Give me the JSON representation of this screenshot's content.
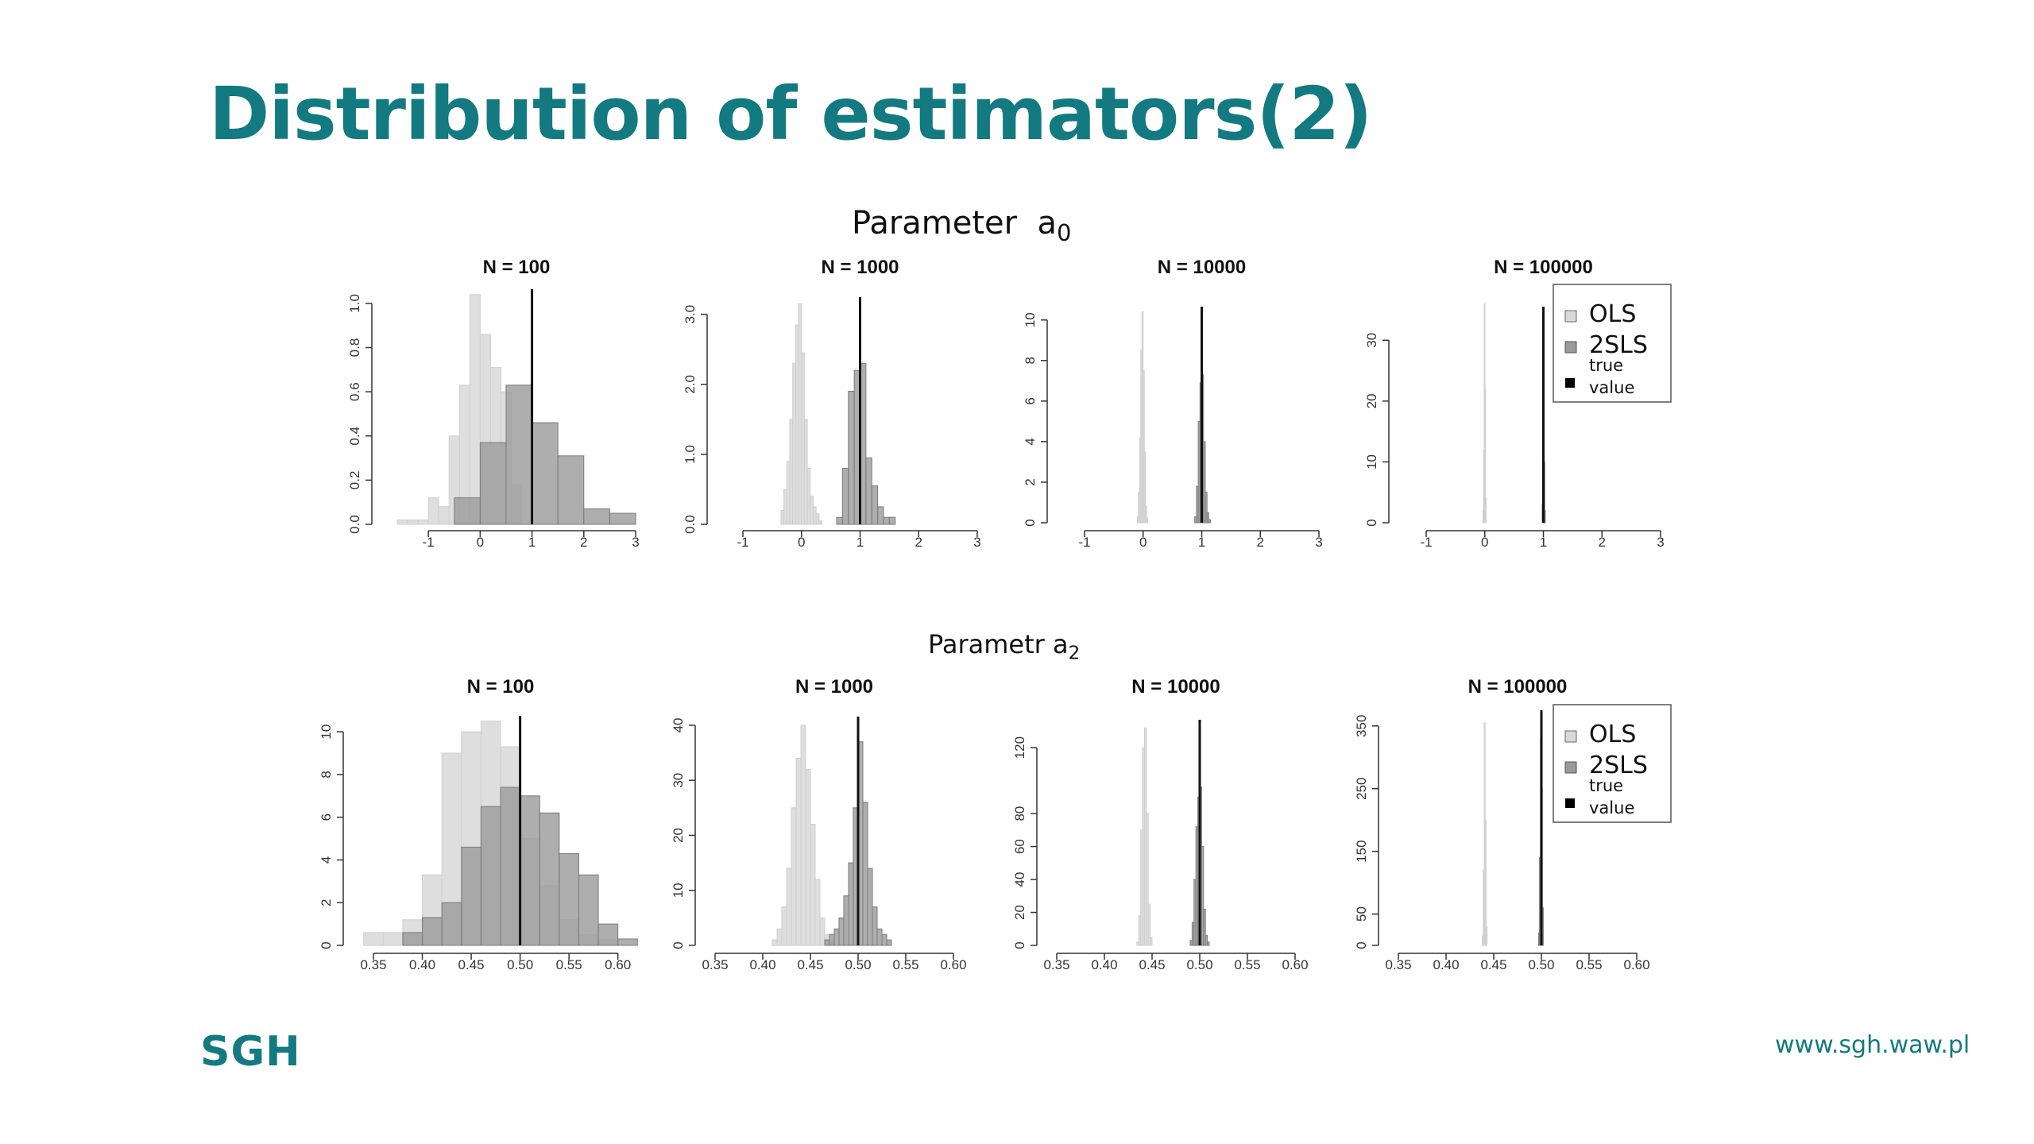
{
  "slide": {
    "title": "Distribution of estimators(2)",
    "logo": "SGH",
    "url": "www.sgh.waw.pl",
    "accent_color": "#127a80"
  },
  "sections": [
    {
      "label": "Parameter",
      "symbol": "a",
      "subscript": "0"
    },
    {
      "label": "Parametr",
      "symbol": "a",
      "subscript": "2"
    }
  ],
  "legend": {
    "items": [
      {
        "label": "OLS",
        "color": "#d9d9d9"
      },
      {
        "label": "2SLS",
        "color": "#9a9a9a"
      },
      {
        "label": "true value",
        "color": "#000000"
      }
    ]
  },
  "chart_data": [
    {
      "type": "histogram",
      "title": "N =  100",
      "parameter": "a0",
      "true_value": 1,
      "xlim": [
        -1.6,
        3.0
      ],
      "xticks": [
        -1,
        0,
        1,
        2,
        3
      ],
      "xtick_labels": [
        "-1",
        "0",
        "1",
        "2",
        "3"
      ],
      "ylim": [
        0,
        1.05
      ],
      "yticks": [
        0,
        0.2,
        0.4,
        0.6,
        0.8,
        1.0
      ],
      "ytick_labels": [
        "0.0",
        "0.2",
        "0.4",
        "0.6",
        "0.8",
        "1.0"
      ],
      "series": [
        {
          "name": "OLS",
          "bin_width": 0.2,
          "bins": [
            [
              -1.6,
              0.02
            ],
            [
              -1.4,
              0.02
            ],
            [
              -1.2,
              0.02
            ],
            [
              -1.0,
              0.12
            ],
            [
              -0.8,
              0.08
            ],
            [
              -0.6,
              0.4
            ],
            [
              -0.4,
              0.63
            ],
            [
              -0.2,
              1.04
            ],
            [
              0.0,
              0.86
            ],
            [
              0.2,
              0.71
            ],
            [
              0.4,
              0.6
            ],
            [
              0.6,
              0.18
            ]
          ]
        },
        {
          "name": "2SLS",
          "bin_width": 0.5,
          "bins": [
            [
              -0.5,
              0.12
            ],
            [
              0.0,
              0.37
            ],
            [
              0.5,
              0.63
            ],
            [
              1.0,
              0.46
            ],
            [
              1.5,
              0.31
            ],
            [
              2.0,
              0.07
            ],
            [
              2.5,
              0.05
            ]
          ]
        }
      ]
    },
    {
      "type": "histogram",
      "title": "N =  1000",
      "parameter": "a0",
      "true_value": 1,
      "xlim": [
        -1,
        3
      ],
      "xticks": [
        -1,
        0,
        1,
        2,
        3
      ],
      "xtick_labels": [
        "-1",
        "0",
        "1",
        "2",
        "3"
      ],
      "ylim": [
        0,
        3.2
      ],
      "yticks": [
        0,
        1,
        2,
        3
      ],
      "ytick_labels": [
        "0.0",
        "1.0",
        "2.0",
        "3.0"
      ],
      "series": [
        {
          "name": "OLS",
          "bin_width": 0.05,
          "bins": [
            [
              -0.35,
              0.2
            ],
            [
              -0.3,
              0.5
            ],
            [
              -0.25,
              0.9
            ],
            [
              -0.2,
              1.5
            ],
            [
              -0.15,
              2.3
            ],
            [
              -0.1,
              2.85
            ],
            [
              -0.05,
              3.15
            ],
            [
              0.0,
              2.45
            ],
            [
              0.05,
              1.5
            ],
            [
              0.1,
              0.8
            ],
            [
              0.15,
              0.4
            ],
            [
              0.2,
              0.25
            ],
            [
              0.25,
              0.15
            ],
            [
              0.3,
              0.05
            ]
          ]
        },
        {
          "name": "2SLS",
          "bin_width": 0.1,
          "bins": [
            [
              0.6,
              0.1
            ],
            [
              0.7,
              0.8
            ],
            [
              0.8,
              1.9
            ],
            [
              0.9,
              2.2
            ],
            [
              1.0,
              2.3
            ],
            [
              1.1,
              0.95
            ],
            [
              1.2,
              0.55
            ],
            [
              1.3,
              0.25
            ],
            [
              1.4,
              0.1
            ],
            [
              1.5,
              0.1
            ]
          ]
        }
      ]
    },
    {
      "type": "histogram",
      "title": "N =  10000",
      "parameter": "a0",
      "true_value": 1,
      "xlim": [
        -1,
        3
      ],
      "xticks": [
        -1,
        0,
        1,
        2,
        3
      ],
      "xtick_labels": [
        "-1",
        "0",
        "1",
        "2",
        "3"
      ],
      "ylim": [
        0,
        10.5
      ],
      "yticks": [
        0,
        2,
        4,
        6,
        8,
        10
      ],
      "ytick_labels": [
        "0",
        "2",
        "4",
        "6",
        "8",
        "10"
      ],
      "series": [
        {
          "name": "OLS",
          "bin_width": 0.02,
          "bins": [
            [
              -0.1,
              0.3
            ],
            [
              -0.08,
              1.5
            ],
            [
              -0.06,
              4.2
            ],
            [
              -0.04,
              8.5
            ],
            [
              -0.02,
              10.4
            ],
            [
              0.0,
              7.5
            ],
            [
              0.02,
              3.5
            ],
            [
              0.04,
              0.8
            ],
            [
              0.06,
              0.2
            ]
          ]
        },
        {
          "name": "2SLS",
          "bin_width": 0.03,
          "bins": [
            [
              0.88,
              0.3
            ],
            [
              0.91,
              1.8
            ],
            [
              0.94,
              5.0
            ],
            [
              0.97,
              6.9
            ],
            [
              1.0,
              7.3
            ],
            [
              1.03,
              4.0
            ],
            [
              1.06,
              1.5
            ],
            [
              1.09,
              0.5
            ],
            [
              1.12,
              0.15
            ]
          ]
        }
      ]
    },
    {
      "type": "histogram",
      "title": "N =  100000",
      "parameter": "a0",
      "true_value": 1,
      "xlim": [
        -1,
        3
      ],
      "xticks": [
        -1,
        0,
        1,
        2,
        3
      ],
      "xtick_labels": [
        "-1",
        "0",
        "1",
        "2",
        "3"
      ],
      "ylim": [
        0,
        35
      ],
      "yticks": [
        0,
        10,
        20,
        30
      ],
      "ytick_labels": [
        "0",
        "10",
        "20",
        "30"
      ],
      "series": [
        {
          "name": "OLS",
          "bin_width": 0.01,
          "bins": [
            [
              -0.03,
              2
            ],
            [
              -0.02,
              12
            ],
            [
              -0.01,
              36
            ],
            [
              0.0,
              22
            ],
            [
              0.01,
              4
            ]
          ]
        },
        {
          "name": "2SLS",
          "bin_width": 0.01,
          "bins": [
            [
              0.98,
              3
            ],
            [
              0.99,
              15
            ],
            [
              1.0,
              24
            ],
            [
              1.01,
              10
            ],
            [
              1.02,
              2
            ]
          ]
        }
      ]
    },
    {
      "type": "histogram",
      "title": "N =  100",
      "parameter": "a2",
      "true_value": 0.5,
      "xlim": [
        0.35,
        0.61
      ],
      "xticks": [
        0.35,
        0.4,
        0.45,
        0.5,
        0.55,
        0.6
      ],
      "xtick_labels": [
        "0.35",
        "0.40",
        "0.45",
        "0.50",
        "0.55",
        "0.60"
      ],
      "ylim": [
        0,
        10.6
      ],
      "yticks": [
        0,
        2,
        4,
        6,
        8,
        10
      ],
      "ytick_labels": [
        "0",
        "2",
        "4",
        "6",
        "8",
        "10"
      ],
      "series": [
        {
          "name": "OLS",
          "bin_width": 0.02,
          "bins": [
            [
              0.34,
              0.6
            ],
            [
              0.36,
              0.6
            ],
            [
              0.38,
              1.2
            ],
            [
              0.4,
              3.3
            ],
            [
              0.42,
              9.0
            ],
            [
              0.44,
              10.0
            ],
            [
              0.46,
              10.5
            ],
            [
              0.48,
              9.3
            ],
            [
              0.5,
              5.0
            ],
            [
              0.52,
              2.8
            ],
            [
              0.54,
              1.2
            ],
            [
              0.56,
              0.5
            ],
            [
              0.58,
              0.3
            ]
          ]
        },
        {
          "name": "2SLS",
          "bin_width": 0.02,
          "bins": [
            [
              0.38,
              0.6
            ],
            [
              0.4,
              1.3
            ],
            [
              0.42,
              2.0
            ],
            [
              0.44,
              4.6
            ],
            [
              0.46,
              6.5
            ],
            [
              0.48,
              7.4
            ],
            [
              0.5,
              7.0
            ],
            [
              0.52,
              6.2
            ],
            [
              0.54,
              4.3
            ],
            [
              0.56,
              3.3
            ],
            [
              0.58,
              1.0
            ],
            [
              0.6,
              0.3
            ]
          ]
        }
      ]
    },
    {
      "type": "histogram",
      "title": "N =  1000",
      "parameter": "a2",
      "true_value": 0.5,
      "xlim": [
        0.35,
        0.6
      ],
      "xticks": [
        0.35,
        0.4,
        0.45,
        0.5,
        0.55,
        0.6
      ],
      "xtick_labels": [
        "0.35",
        "0.40",
        "0.45",
        "0.50",
        "0.55",
        "0.60"
      ],
      "ylim": [
        0,
        41
      ],
      "yticks": [
        0,
        10,
        20,
        30,
        40
      ],
      "ytick_labels": [
        "0",
        "10",
        "20",
        "30",
        "40"
      ],
      "series": [
        {
          "name": "OLS",
          "bin_width": 0.005,
          "bins": [
            [
              0.41,
              1
            ],
            [
              0.415,
              3
            ],
            [
              0.42,
              7
            ],
            [
              0.425,
              14
            ],
            [
              0.43,
              25
            ],
            [
              0.435,
              34
            ],
            [
              0.44,
              40
            ],
            [
              0.445,
              32
            ],
            [
              0.45,
              22
            ],
            [
              0.455,
              12
            ],
            [
              0.46,
              5
            ],
            [
              0.465,
              2
            ],
            [
              0.47,
              1
            ]
          ]
        },
        {
          "name": "2SLS",
          "bin_width": 0.005,
          "bins": [
            [
              0.465,
              1
            ],
            [
              0.47,
              2
            ],
            [
              0.475,
              3
            ],
            [
              0.48,
              5
            ],
            [
              0.485,
              9
            ],
            [
              0.49,
              15
            ],
            [
              0.495,
              25
            ],
            [
              0.5,
              37
            ],
            [
              0.505,
              26
            ],
            [
              0.51,
              14
            ],
            [
              0.515,
              7
            ],
            [
              0.52,
              3
            ],
            [
              0.525,
              2
            ],
            [
              0.53,
              1
            ]
          ]
        }
      ]
    },
    {
      "type": "histogram",
      "title": "N =  10000",
      "parameter": "a2",
      "true_value": 0.5,
      "xlim": [
        0.35,
        0.6
      ],
      "xticks": [
        0.35,
        0.4,
        0.45,
        0.5,
        0.55,
        0.6
      ],
      "xtick_labels": [
        "0.35",
        "0.40",
        "0.45",
        "0.50",
        "0.55",
        "0.60"
      ],
      "ylim": [
        0,
        135
      ],
      "yticks": [
        0,
        20,
        40,
        60,
        80,
        120
      ],
      "ytick_labels": [
        "0",
        "20",
        "40",
        "60",
        "80",
        "120"
      ],
      "series": [
        {
          "name": "OLS",
          "bin_width": 0.002,
          "bins": [
            [
              0.434,
              2
            ],
            [
              0.436,
              18
            ],
            [
              0.438,
              70
            ],
            [
              0.44,
              120
            ],
            [
              0.442,
              132
            ],
            [
              0.444,
              80
            ],
            [
              0.446,
              25
            ],
            [
              0.448,
              5
            ]
          ]
        },
        {
          "name": "2SLS",
          "bin_width": 0.002,
          "bins": [
            [
              0.49,
              3
            ],
            [
              0.492,
              14
            ],
            [
              0.494,
              40
            ],
            [
              0.496,
              72
            ],
            [
              0.498,
              90
            ],
            [
              0.5,
              96
            ],
            [
              0.502,
              60
            ],
            [
              0.504,
              22
            ],
            [
              0.506,
              6
            ],
            [
              0.508,
              2
            ]
          ]
        }
      ]
    },
    {
      "type": "histogram",
      "title": "N =  100000",
      "parameter": "a2",
      "true_value": 0.5,
      "xlim": [
        0.35,
        0.6
      ],
      "xticks": [
        0.35,
        0.4,
        0.45,
        0.5,
        0.55,
        0.6
      ],
      "xtick_labels": [
        "0.35",
        "0.40",
        "0.45",
        "0.50",
        "0.55",
        "0.60"
      ],
      "ylim": [
        0,
        370
      ],
      "yticks": [
        0,
        50,
        150,
        250,
        350
      ],
      "ytick_labels": [
        "0",
        "50",
        "150",
        "250",
        "350"
      ],
      "series": [
        {
          "name": "OLS",
          "bin_width": 0.001,
          "bins": [
            [
              0.438,
              15
            ],
            [
              0.439,
              120
            ],
            [
              0.44,
              355
            ],
            [
              0.441,
              200
            ],
            [
              0.442,
              30
            ]
          ]
        },
        {
          "name": "2SLS",
          "bin_width": 0.001,
          "bins": [
            [
              0.497,
              20
            ],
            [
              0.498,
              140
            ],
            [
              0.499,
              330
            ],
            [
              0.5,
              250
            ],
            [
              0.501,
              60
            ]
          ]
        }
      ]
    }
  ]
}
